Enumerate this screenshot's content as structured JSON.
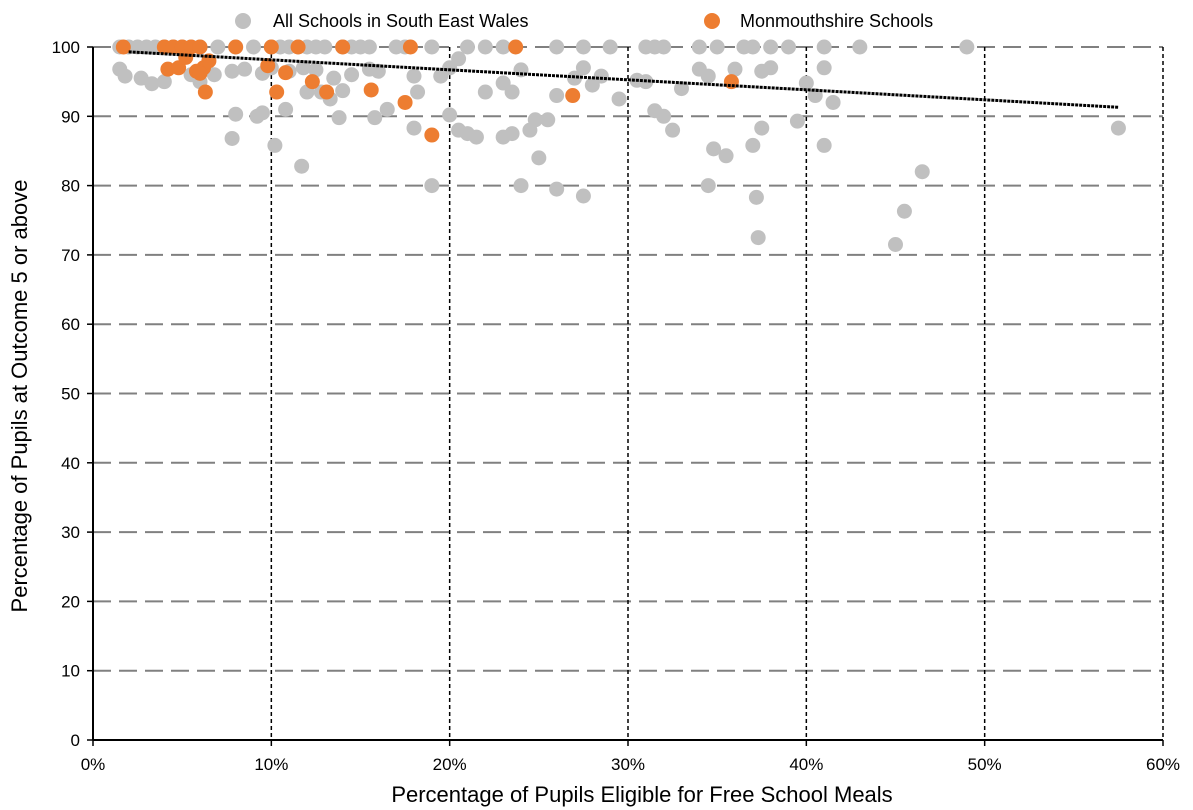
{
  "chart_data": {
    "type": "scatter",
    "title": "",
    "xlabel": "Percentage of Pupils Eligible for Free School Meals",
    "ylabel": "Percentage of Pupils at Outcome 5 or above",
    "xlim": [
      0,
      0.6
    ],
    "ylim": [
      0,
      100
    ],
    "x_ticks": [
      "0%",
      "10%",
      "20%",
      "30%",
      "40%",
      "50%",
      "60%"
    ],
    "y_ticks": [
      "0",
      "10",
      "20",
      "30",
      "40",
      "50",
      "60",
      "70",
      "80",
      "90",
      "100"
    ],
    "grid": true,
    "legend_position": "top",
    "series": [
      {
        "name": "All Schools in South East Wales",
        "color": "#c0c0c0",
        "points": [
          [
            0.015,
            100
          ],
          [
            0.02,
            100
          ],
          [
            0.025,
            100
          ],
          [
            0.03,
            100
          ],
          [
            0.035,
            100
          ],
          [
            0.04,
            100
          ],
          [
            0.045,
            100
          ],
          [
            0.05,
            100
          ],
          [
            0.055,
            100
          ],
          [
            0.06,
            100
          ],
          [
            0.07,
            100
          ],
          [
            0.08,
            100
          ],
          [
            0.09,
            100
          ],
          [
            0.1,
            100
          ],
          [
            0.105,
            100
          ],
          [
            0.11,
            100
          ],
          [
            0.115,
            100
          ],
          [
            0.12,
            100
          ],
          [
            0.125,
            100
          ],
          [
            0.13,
            100
          ],
          [
            0.14,
            100
          ],
          [
            0.145,
            100
          ],
          [
            0.15,
            100
          ],
          [
            0.155,
            100
          ],
          [
            0.17,
            100
          ],
          [
            0.175,
            100
          ],
          [
            0.19,
            100
          ],
          [
            0.21,
            100
          ],
          [
            0.22,
            100
          ],
          [
            0.23,
            100
          ],
          [
            0.26,
            100
          ],
          [
            0.275,
            100
          ],
          [
            0.29,
            100
          ],
          [
            0.31,
            100
          ],
          [
            0.315,
            100
          ],
          [
            0.32,
            100
          ],
          [
            0.34,
            100
          ],
          [
            0.35,
            100
          ],
          [
            0.365,
            100
          ],
          [
            0.37,
            100
          ],
          [
            0.38,
            100
          ],
          [
            0.39,
            100
          ],
          [
            0.41,
            100
          ],
          [
            0.43,
            100
          ],
          [
            0.49,
            100
          ],
          [
            0.015,
            96.8
          ],
          [
            0.018,
            95.8
          ],
          [
            0.027,
            95.5
          ],
          [
            0.033,
            94.7
          ],
          [
            0.04,
            95
          ],
          [
            0.055,
            96
          ],
          [
            0.06,
            95
          ],
          [
            0.068,
            96
          ],
          [
            0.078,
            96.5
          ],
          [
            0.085,
            96.8
          ],
          [
            0.095,
            96.2
          ],
          [
            0.1,
            97
          ],
          [
            0.11,
            96.5
          ],
          [
            0.118,
            97
          ],
          [
            0.125,
            96.7
          ],
          [
            0.135,
            95.5
          ],
          [
            0.145,
            96
          ],
          [
            0.155,
            96.8
          ],
          [
            0.16,
            96.5
          ],
          [
            0.18,
            95.8
          ],
          [
            0.195,
            95.8
          ],
          [
            0.2,
            97
          ],
          [
            0.205,
            98.3
          ],
          [
            0.22,
            93.5
          ],
          [
            0.23,
            94.8
          ],
          [
            0.235,
            93.5
          ],
          [
            0.24,
            96.7
          ],
          [
            0.26,
            93
          ],
          [
            0.27,
            95.5
          ],
          [
            0.275,
            97
          ],
          [
            0.28,
            94.5
          ],
          [
            0.285,
            95.8
          ],
          [
            0.295,
            92.5
          ],
          [
            0.305,
            95.2
          ],
          [
            0.31,
            95
          ],
          [
            0.315,
            90.8
          ],
          [
            0.33,
            94
          ],
          [
            0.34,
            96.8
          ],
          [
            0.345,
            95.8
          ],
          [
            0.36,
            96.8
          ],
          [
            0.375,
            96.5
          ],
          [
            0.38,
            97
          ],
          [
            0.4,
            94.8
          ],
          [
            0.405,
            93
          ],
          [
            0.41,
            97
          ],
          [
            0.415,
            92
          ],
          [
            0.078,
            86.8
          ],
          [
            0.08,
            90.3
          ],
          [
            0.092,
            90
          ],
          [
            0.095,
            90.5
          ],
          [
            0.102,
            85.8
          ],
          [
            0.108,
            91
          ],
          [
            0.117,
            82.8
          ],
          [
            0.12,
            93.5
          ],
          [
            0.128,
            93.5
          ],
          [
            0.133,
            92.5
          ],
          [
            0.138,
            89.8
          ],
          [
            0.14,
            93.7
          ],
          [
            0.158,
            89.8
          ],
          [
            0.165,
            91
          ],
          [
            0.18,
            88.3
          ],
          [
            0.182,
            93.5
          ],
          [
            0.19,
            80
          ],
          [
            0.2,
            90.2
          ],
          [
            0.205,
            88
          ],
          [
            0.21,
            87.5
          ],
          [
            0.215,
            87
          ],
          [
            0.23,
            87
          ],
          [
            0.235,
            87.5
          ],
          [
            0.24,
            80
          ],
          [
            0.245,
            88
          ],
          [
            0.248,
            89.5
          ],
          [
            0.25,
            84
          ],
          [
            0.255,
            89.5
          ],
          [
            0.26,
            79.5
          ],
          [
            0.275,
            78.5
          ],
          [
            0.32,
            90
          ],
          [
            0.325,
            88
          ],
          [
            0.345,
            80
          ],
          [
            0.348,
            85.3
          ],
          [
            0.355,
            84.3
          ],
          [
            0.37,
            85.8
          ],
          [
            0.372,
            78.3
          ],
          [
            0.373,
            72.5
          ],
          [
            0.375,
            88.3
          ],
          [
            0.395,
            89.3
          ],
          [
            0.41,
            85.8
          ],
          [
            0.45,
            71.5
          ],
          [
            0.455,
            76.3
          ],
          [
            0.465,
            82
          ],
          [
            0.575,
            88.3
          ]
        ]
      },
      {
        "name": "Monmouthshire Schools",
        "color": "#ed7d31",
        "points": [
          [
            0.017,
            100
          ],
          [
            0.04,
            100
          ],
          [
            0.045,
            100
          ],
          [
            0.05,
            100
          ],
          [
            0.055,
            100
          ],
          [
            0.06,
            100
          ],
          [
            0.08,
            100
          ],
          [
            0.1,
            100
          ],
          [
            0.115,
            100
          ],
          [
            0.14,
            100
          ],
          [
            0.178,
            100
          ],
          [
            0.237,
            100
          ],
          [
            0.042,
            96.8
          ],
          [
            0.048,
            97
          ],
          [
            0.052,
            98.5
          ],
          [
            0.058,
            96.5
          ],
          [
            0.062,
            97
          ],
          [
            0.065,
            98
          ],
          [
            0.06,
            96.2
          ],
          [
            0.063,
            93.5
          ],
          [
            0.098,
            97.3
          ],
          [
            0.103,
            93.5
          ],
          [
            0.108,
            96.3
          ],
          [
            0.123,
            95
          ],
          [
            0.131,
            93.5
          ],
          [
            0.156,
            93.8
          ],
          [
            0.175,
            92
          ],
          [
            0.19,
            87.3
          ],
          [
            0.269,
            93
          ],
          [
            0.358,
            95
          ]
        ]
      }
    ],
    "trendline": {
      "type": "linear",
      "x": [
        0.02,
        0.575
      ],
      "y": [
        99.3,
        91.3
      ],
      "color": "#000000"
    }
  }
}
